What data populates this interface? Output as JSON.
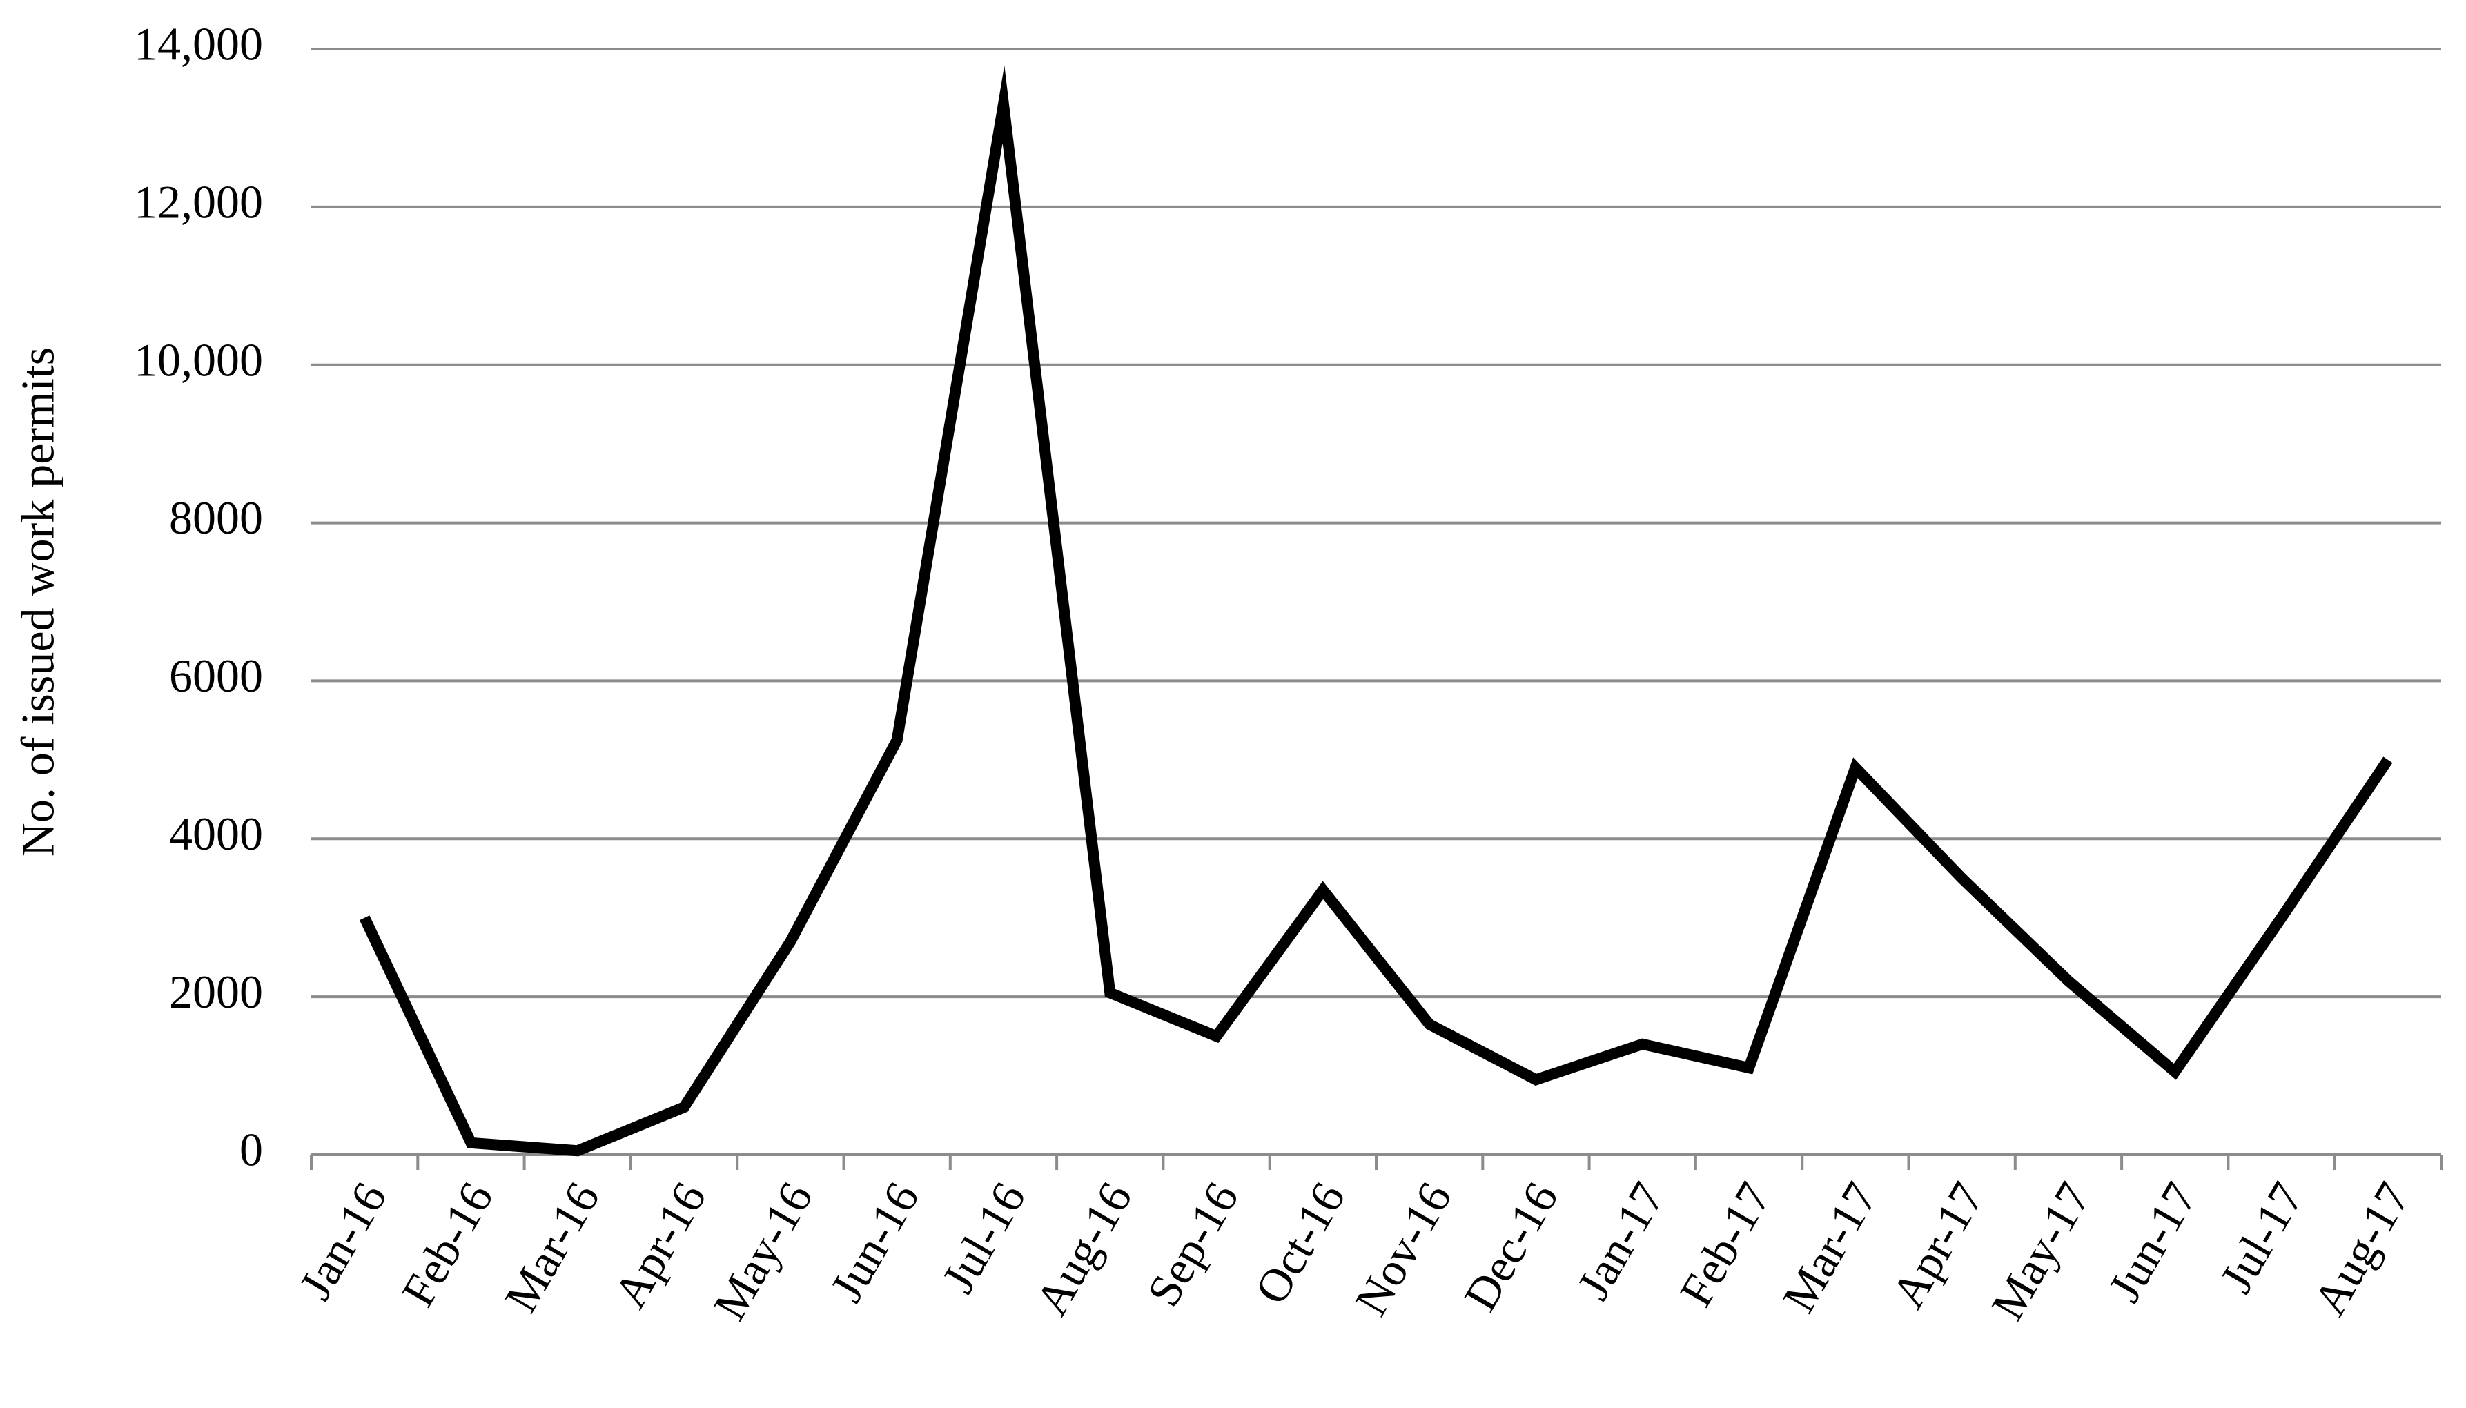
{
  "chart_data": {
    "type": "line",
    "y_label": "No. of issued work permits",
    "categories": [
      "Jan-16",
      "Feb-16",
      "Mar-16",
      "Apr-16",
      "May-16",
      "Jun-16",
      "Jul-16",
      "Aug-16",
      "Sep-16",
      "Oct-16",
      "Nov-16",
      "Dec-16",
      "Jan-17",
      "Feb-17",
      "Mar-17",
      "Apr-17",
      "May-17",
      "Jun-17",
      "Jul-17",
      "Aug-17"
    ],
    "values": [
      3000,
      150,
      50,
      600,
      2700,
      5250,
      13300,
      2050,
      1500,
      3350,
      1650,
      950,
      1400,
      1100,
      4900,
      3500,
      2200,
      1050,
      3000,
      5000
    ],
    "color": "#000000",
    "ylim": [
      0,
      14000
    ],
    "yticks": [
      0,
      2000,
      4000,
      6000,
      8000,
      {
        "value": 10000,
        "label": "10,000"
      },
      {
        "value": 12000,
        "label": "12,000"
      },
      {
        "value": 14000,
        "label": "14,000"
      }
    ],
    "grid": true
  }
}
